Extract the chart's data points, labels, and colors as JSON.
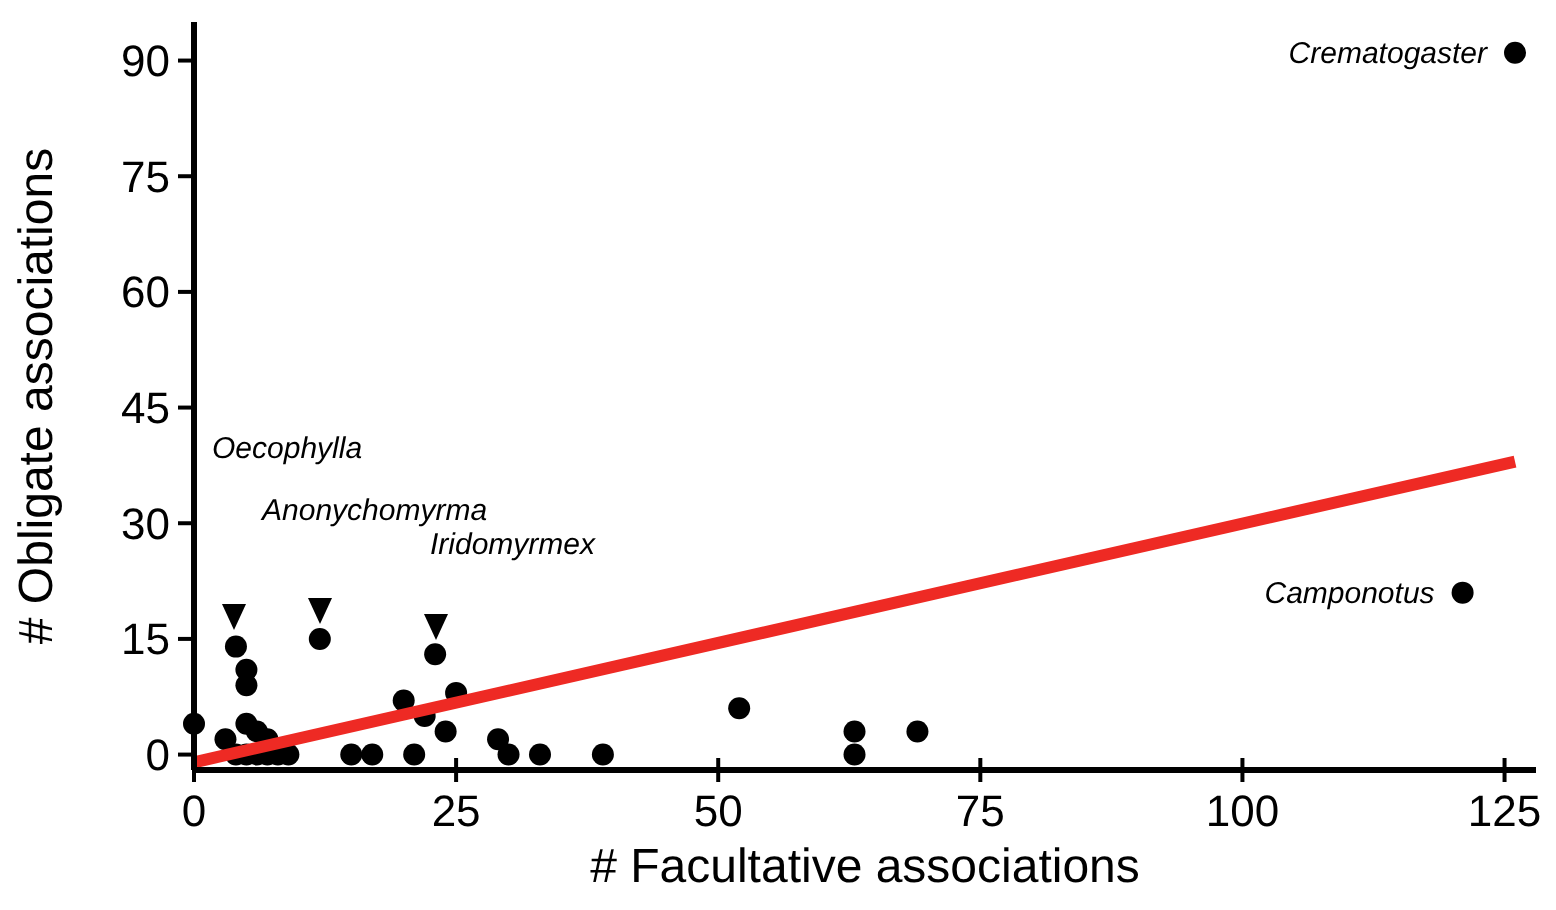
{
  "chart_data": {
    "type": "scatter",
    "xlabel": "# Facultative associations",
    "ylabel": "# Obligate associations",
    "xlim": [
      0,
      128
    ],
    "ylim": [
      -2,
      95
    ],
    "xticks": [
      0,
      25,
      50,
      75,
      100,
      125
    ],
    "yticks": [
      0,
      15,
      30,
      45,
      60,
      75,
      90
    ],
    "grid": false,
    "series": [
      {
        "marker": "circle",
        "color": "#000000",
        "x": [
          0,
          3,
          4,
          5,
          5,
          5,
          6,
          7,
          4,
          5,
          6,
          7,
          8,
          9,
          12,
          15,
          17,
          20,
          21,
          22,
          23,
          24,
          25,
          29,
          30,
          33,
          39,
          52,
          63,
          63,
          69,
          121,
          126
        ],
        "values": [
          4,
          2,
          14,
          11,
          9,
          4,
          3,
          2,
          0,
          0,
          0,
          0,
          0,
          0,
          15,
          0,
          0,
          7,
          0,
          5,
          13,
          3,
          8,
          2,
          0,
          0,
          0,
          6,
          3,
          0,
          3,
          21,
          91
        ]
      },
      {
        "type": "line",
        "color": "#ee2a24",
        "x": [
          0,
          126
        ],
        "values": [
          -1,
          38
        ]
      }
    ],
    "annotations": [
      {
        "text": "Crematogaster",
        "x": 126,
        "y": 91
      },
      {
        "text": "Camponotus",
        "x": 121,
        "y": 21
      },
      "Oecophylla",
      "Anonychomyrma",
      "Iridomyrmex"
    ]
  }
}
